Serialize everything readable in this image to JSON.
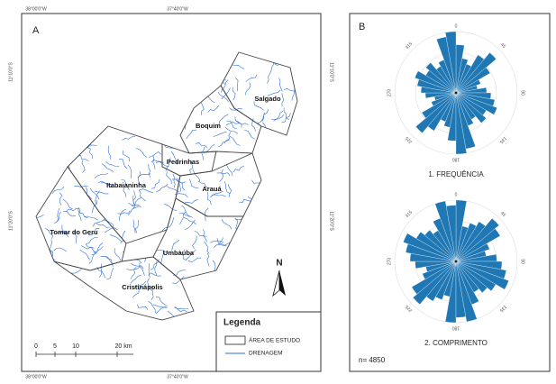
{
  "panel_a": {
    "label": "A",
    "coordinates": {
      "lon_west": "38°00'0\"W",
      "lon_east": "37°40'0\"W",
      "lon_west_bottom": "38°00'0\"W",
      "lon_east_bottom": "37°40'0\"W",
      "lat_north": "11°10'0\"S",
      "lat_south": "11°20'0\"S",
      "lat_north_right": "11°10'0\"S",
      "lat_south_right": "11°20'0\"S"
    },
    "places": [
      "Salgado",
      "Boquim",
      "Pedrinhas",
      "Itabaianinha",
      "Arauá",
      "Tomar do Geru",
      "Umbaúba",
      "Cristinápolis"
    ],
    "north": "N",
    "scale": [
      "0",
      "5",
      "10",
      "20 km"
    ],
    "legend": {
      "title": "Legenda",
      "items": [
        "ÁREA DE ESTUDO",
        "DRENAGEM"
      ]
    }
  },
  "panel_b": {
    "label": "B",
    "sample": "n= 4850",
    "direction_labels": [
      "0",
      "45",
      "90",
      "135",
      "180",
      "225",
      "270",
      "315"
    ],
    "roses": [
      {
        "title": "1. FREQUÊNCIA",
        "color": "#1f77b4",
        "values": [
          55,
          40,
          35,
          50,
          60,
          45,
          30,
          25,
          35,
          40,
          45,
          50,
          40,
          45,
          35,
          40,
          65,
          70
        ]
      },
      {
        "title": "2. COMPRIMENTO",
        "color": "#1f77b4",
        "values": [
          60,
          35,
          40,
          45,
          55,
          50,
          35,
          30,
          40,
          45,
          50,
          55,
          45,
          40,
          35,
          45,
          60,
          55
        ]
      }
    ]
  }
}
